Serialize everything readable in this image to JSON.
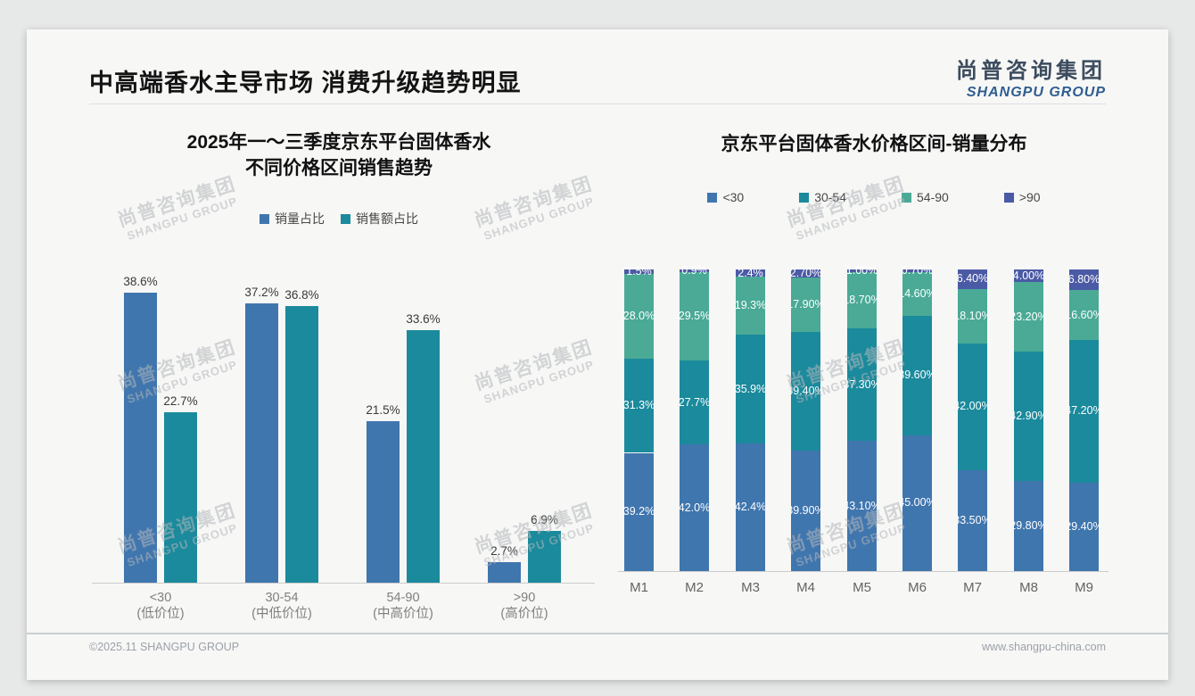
{
  "page": {
    "main_title": "中高端香水主导市场 消费升级趋势明显",
    "logo": {
      "cn": "尚普咨询集团",
      "en": "SHANGPU GROUP"
    },
    "watermark": {
      "cn": "尚普咨询集团",
      "en": "SHANGPU GROUP"
    },
    "footer": {
      "left": "©2025.11 SHANGPU GROUP",
      "right": "www.shangpu-china.com"
    }
  },
  "colors": {
    "blue": "#4076ae",
    "teal": "#1b8a9c",
    "green": "#4aaa96",
    "indigo": "#4b5aa5"
  },
  "chart_data": [
    {
      "type": "bar",
      "title_lines": [
        "2025年一～三季度京东平台固体香水",
        "不同价格区间销售趋势"
      ],
      "categories": [
        "<30",
        "30-54",
        "54-90",
        ">90"
      ],
      "category_sublabels": [
        "(低价位)",
        "(中低价位)",
        "(中高价位)",
        "(高价位)"
      ],
      "series": [
        {
          "name": "销量占比",
          "color_key": "blue",
          "values": [
            38.6,
            37.2,
            21.5,
            2.7
          ],
          "labels": [
            "38.6%",
            "37.2%",
            "21.5%",
            "2.7%"
          ]
        },
        {
          "name": "销售额占比",
          "color_key": "teal",
          "values": [
            22.7,
            36.8,
            33.6,
            6.9
          ],
          "labels": [
            "22.7%",
            "36.8%",
            "33.6%",
            "6.9%"
          ]
        }
      ],
      "ylim": [
        0,
        45
      ],
      "grid": false,
      "legend_position": "top"
    },
    {
      "type": "stacked-bar",
      "title": "京东平台固体香水价格区间-销量分布",
      "categories": [
        "M1",
        "M2",
        "M3",
        "M4",
        "M5",
        "M6",
        "M7",
        "M8",
        "M9"
      ],
      "series": [
        {
          "name": "<30",
          "color_key": "blue",
          "values": [
            39.2,
            42.0,
            42.4,
            39.9,
            43.1,
            45.0,
            33.5,
            29.8,
            29.4
          ],
          "labels": [
            "39.2%",
            "42.0%",
            "42.4%",
            "39.90%",
            "43.10%",
            "45.00%",
            "33.50%",
            "29.80%",
            "29.40%"
          ]
        },
        {
          "name": "30-54",
          "color_key": "teal",
          "values": [
            31.3,
            27.7,
            35.9,
            39.4,
            37.3,
            39.6,
            42.0,
            42.9,
            47.2
          ],
          "labels": [
            "31.3%",
            "27.7%",
            "35.9%",
            "39.40%",
            "37.30%",
            "39.60%",
            "42.00%",
            "42.90%",
            "47.20%"
          ]
        },
        {
          "name": "54-90",
          "color_key": "green",
          "values": [
            28.0,
            29.5,
            19.3,
            17.9,
            18.7,
            14.6,
            18.1,
            23.2,
            16.6
          ],
          "labels": [
            "28.0%",
            "29.5%",
            "19.3%",
            "17.90%",
            "18.70%",
            "14.60%",
            "18.10%",
            "23.20%",
            "16.60%"
          ]
        },
        {
          "name": ">90",
          "color_key": "indigo",
          "values": [
            1.5,
            0.9,
            2.4,
            2.7,
            1.0,
            0.7,
            6.4,
            4.0,
            6.8
          ],
          "labels": [
            "1.5%",
            "0.9%",
            "2.4%",
            "2.70%",
            "1.00%",
            "0.70%",
            "6.40%",
            "4.00%",
            "6.80%"
          ]
        }
      ],
      "ylim": [
        0,
        100
      ],
      "grid": false,
      "legend_position": "top"
    }
  ]
}
